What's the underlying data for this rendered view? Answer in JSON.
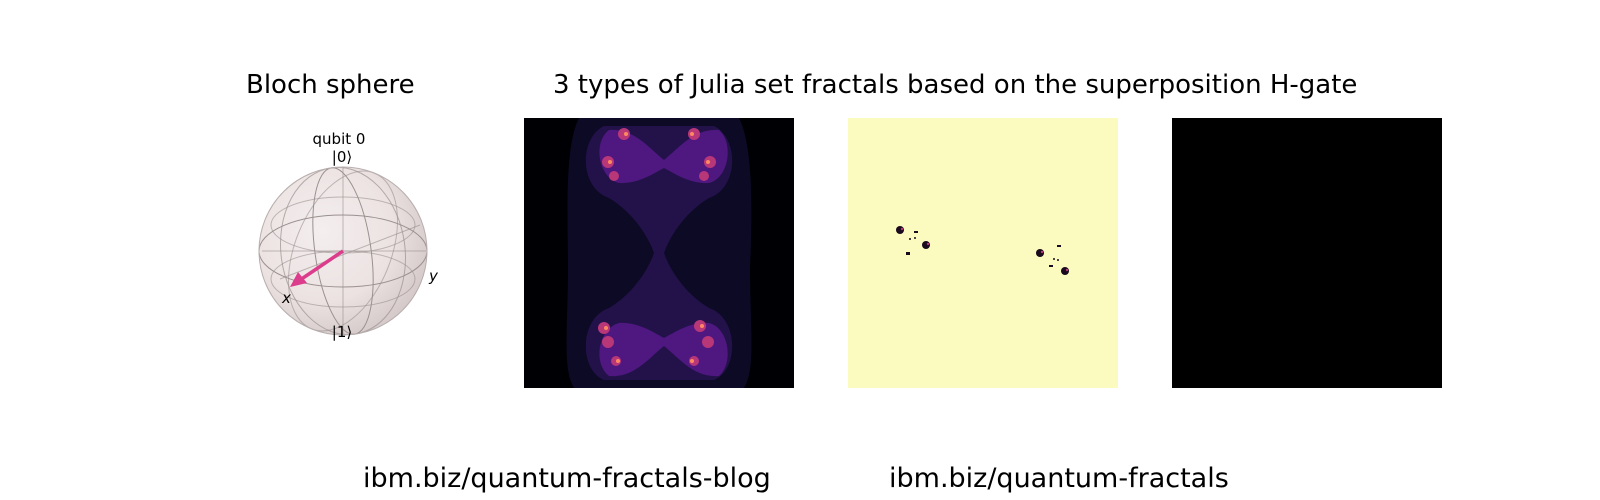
{
  "bloch": {
    "title": "Bloch sphere",
    "qubit_label": "qubit 0",
    "ket0_label": "|0⟩",
    "ket1_label": "|1⟩",
    "x_label": "x",
    "y_label": "y",
    "vector_color": "#dc3c8c"
  },
  "julia": {
    "title": "3 types of Julia set fractals based on the superposition H-gate",
    "panels": [
      {
        "colormap": "magma",
        "background": "#000004"
      },
      {
        "colormap": "magma",
        "background": "#fcfdbf"
      },
      {
        "colormap": "magma",
        "background": "#000000"
      }
    ]
  },
  "links": {
    "blog": "ibm.biz/quantum-fractals-blog",
    "code": "ibm.biz/quantum-fractals"
  }
}
